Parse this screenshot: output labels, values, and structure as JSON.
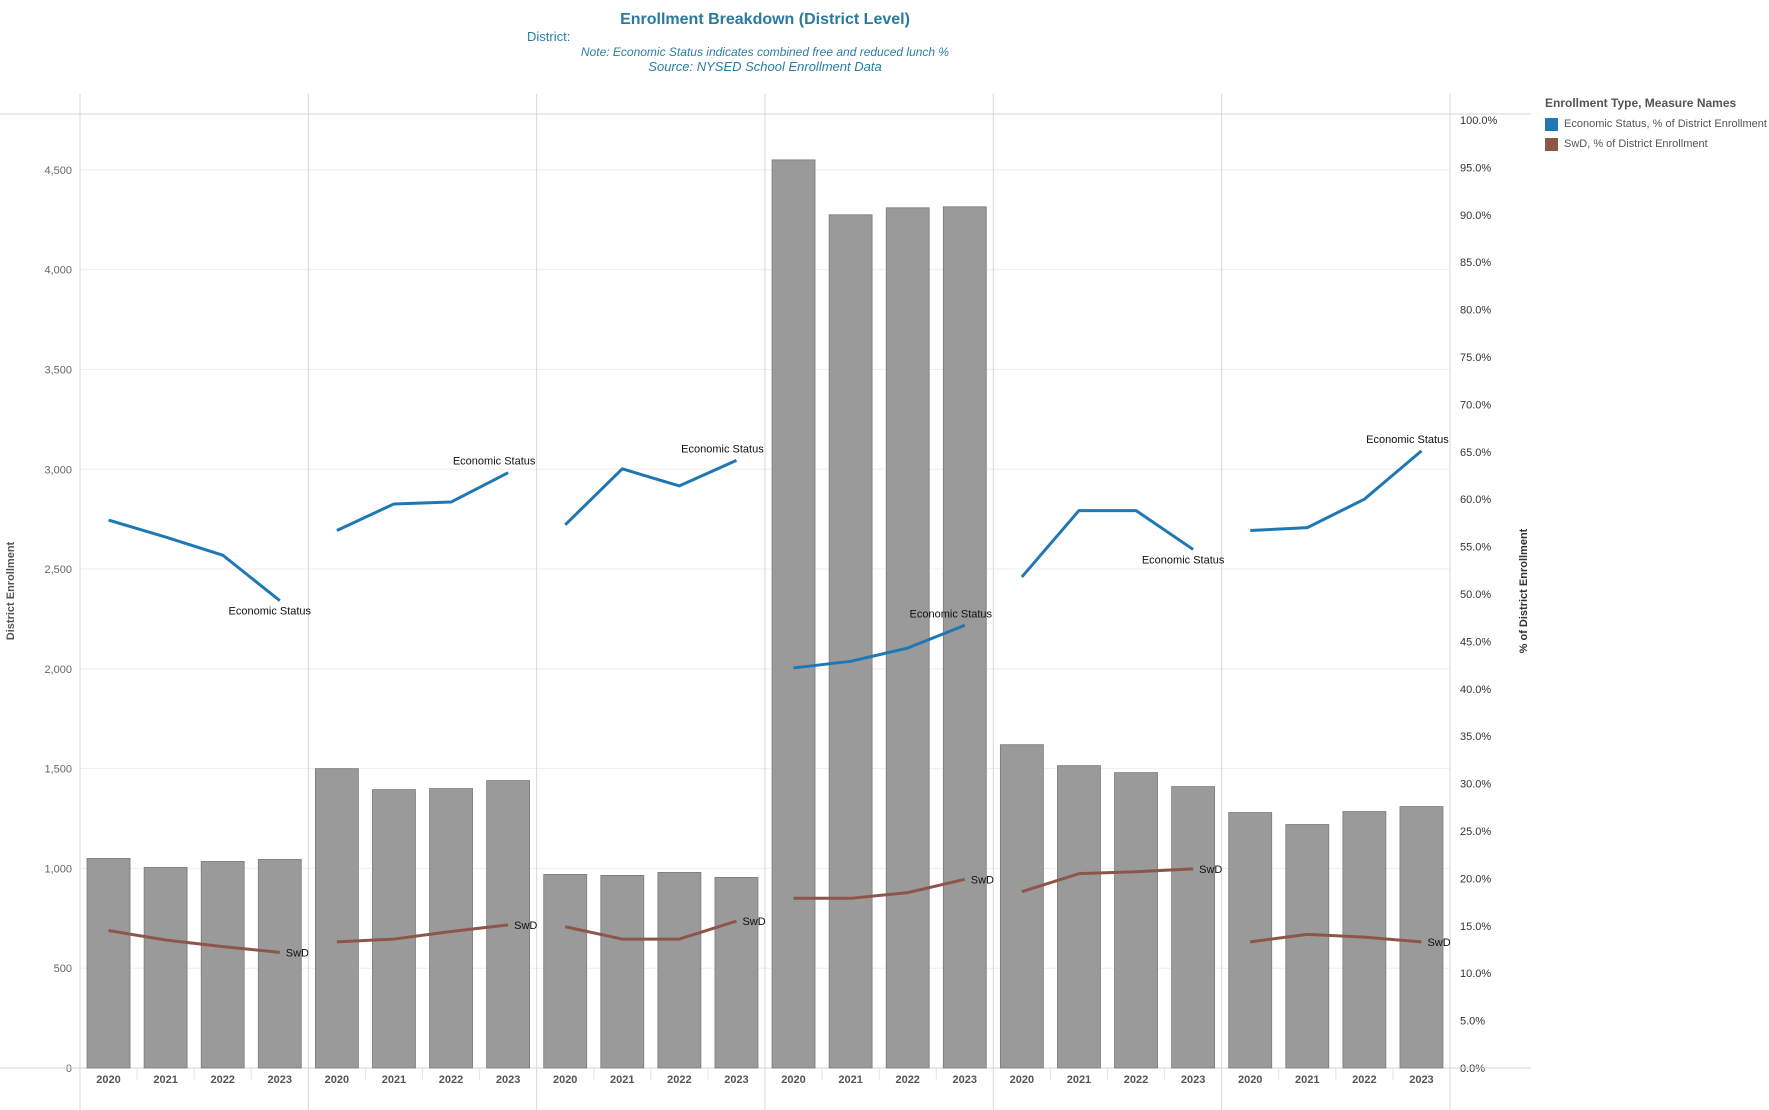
{
  "header": {
    "title": "Enrollment Breakdown (District Level)",
    "district_label": "District:",
    "note": "Note: Economic Status indicates combined free and reduced lunch %",
    "source": "Source: NYSED School Enrollment Data"
  },
  "legend": {
    "title": "Enrollment Type, Measure Names",
    "items": [
      {
        "label": "Economic Status, % of District Enrollment",
        "color": "#1f77b4"
      },
      {
        "label": "SwD, % of District Enrollment",
        "color": "#8c564b"
      }
    ]
  },
  "chart_data": {
    "type": "bar",
    "ylabel": "District Enrollment",
    "y2label": "% of District Enrollment",
    "ylim": [
      0,
      4780
    ],
    "y2lim": [
      0,
      100
    ],
    "yticks": [
      "0",
      "500",
      "1,000",
      "1,500",
      "2,000",
      "2,500",
      "3,000",
      "3,500",
      "4,000",
      "4,500"
    ],
    "y2ticks": [
      "0.0%",
      "5.0%",
      "10.0%",
      "15.0%",
      "20.0%",
      "25.0%",
      "30.0%",
      "35.0%",
      "40.0%",
      "45.0%",
      "50.0%",
      "55.0%",
      "60.0%",
      "65.0%",
      "70.0%",
      "75.0%",
      "80.0%",
      "85.0%",
      "90.0%",
      "95.0%",
      "100.0%"
    ],
    "categories": [
      "2020",
      "2021",
      "2022",
      "2023"
    ],
    "grid": true,
    "legend_position": "right",
    "bar_color": "#9a9a9a",
    "line_labels": [
      "Economic Status",
      "SwD"
    ],
    "panels": [
      {
        "enrollment": [
          1050,
          1005,
          1035,
          1045
        ],
        "economic_status_pct": [
          57.8,
          56.0,
          54.1,
          49.3
        ],
        "swd_pct": [
          14.5,
          13.5,
          12.8,
          12.2
        ]
      },
      {
        "enrollment": [
          1500,
          1395,
          1400,
          1440
        ],
        "economic_status_pct": [
          56.7,
          59.5,
          59.7,
          62.8
        ],
        "swd_pct": [
          13.3,
          13.6,
          14.4,
          15.1
        ]
      },
      {
        "enrollment": [
          970,
          965,
          980,
          955
        ],
        "economic_status_pct": [
          57.3,
          63.2,
          61.4,
          64.1
        ],
        "swd_pct": [
          14.9,
          13.6,
          13.6,
          15.5
        ]
      },
      {
        "enrollment": [
          4550,
          4275,
          4310,
          4315
        ],
        "economic_status_pct": [
          42.2,
          42.9,
          44.3,
          46.7
        ],
        "swd_pct": [
          17.9,
          17.9,
          18.5,
          19.9
        ]
      },
      {
        "enrollment": [
          1620,
          1515,
          1480,
          1410
        ],
        "economic_status_pct": [
          51.8,
          58.8,
          58.8,
          54.7
        ],
        "swd_pct": [
          18.6,
          20.5,
          20.7,
          21.0
        ]
      },
      {
        "enrollment": [
          1280,
          1220,
          1285,
          1310
        ],
        "economic_status_pct": [
          56.7,
          57.0,
          60.0,
          65.1
        ],
        "swd_pct": [
          13.3,
          14.1,
          13.8,
          13.3
        ]
      }
    ]
  }
}
